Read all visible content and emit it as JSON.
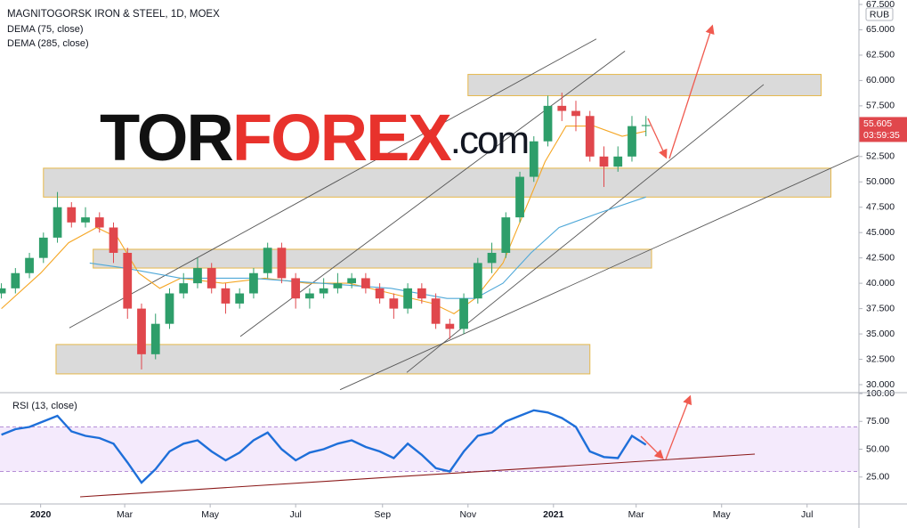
{
  "chart_data": [
    {
      "type": "candlestick",
      "title": "MAGNITOGORSK IRON & STEEL, 1D, MOEX",
      "currency": "RUB",
      "countdown": "03:59:35",
      "watermark": [
        "TOR",
        "FOREX",
        ".com"
      ],
      "up_color": "#2e9e6a",
      "down_color": "#e0474c",
      "xlim": [
        -29,
        584
      ],
      "ylim": [
        30,
        67.5
      ],
      "yticks": [
        {
          "value": 30,
          "label": "30.000"
        },
        {
          "value": 32.5,
          "label": "32.500"
        },
        {
          "value": 35,
          "label": "35.000"
        },
        {
          "value": 37.5,
          "label": "37.500"
        },
        {
          "value": 40,
          "label": "40.000"
        },
        {
          "value": 42.5,
          "label": "42.500"
        },
        {
          "value": 45,
          "label": "45.000"
        },
        {
          "value": 47.5,
          "label": "47.500"
        },
        {
          "value": 50,
          "label": "50.000"
        },
        {
          "value": 52.5,
          "label": "52.500"
        },
        {
          "value": 55,
          "label": "55.000"
        },
        {
          "value": 57.5,
          "label": "57.500"
        },
        {
          "value": 60,
          "label": "60.000"
        },
        {
          "value": 62.5,
          "label": "62.500"
        },
        {
          "value": 65,
          "label": "65.000"
        },
        {
          "value": 67.5,
          "label": "67.500"
        }
      ],
      "x": [
        -28,
        -18,
        -8,
        2,
        12,
        22,
        32,
        42,
        52,
        62,
        72,
        82,
        92,
        102,
        112,
        122,
        132,
        142,
        152,
        162,
        172,
        182,
        192,
        202,
        212,
        222,
        232,
        242,
        252,
        262,
        272,
        282,
        292,
        302,
        312,
        322,
        332,
        342,
        352,
        362,
        372,
        382,
        392,
        402,
        412,
        422,
        432
      ],
      "open": [
        39,
        39.5,
        41,
        42.5,
        44.5,
        47.5,
        46,
        46.5,
        45.5,
        43,
        37.5,
        33,
        36,
        39,
        40,
        41.5,
        39.5,
        38,
        39,
        41,
        43.5,
        40.5,
        38.5,
        39,
        39.5,
        40,
        40.5,
        39.5,
        38.5,
        37.5,
        39.5,
        38.5,
        36,
        35.5,
        38.5,
        42,
        43,
        46.5,
        50.5,
        54,
        57.5,
        57,
        56.5,
        52.5,
        51.5,
        52.5,
        55.5
      ],
      "high": [
        40,
        41.5,
        43,
        45,
        49,
        48,
        47.5,
        47,
        46,
        43.5,
        38,
        37,
        39.5,
        41,
        42.5,
        42,
        40,
        39.5,
        41.5,
        44,
        44,
        41,
        39.5,
        40.5,
        41,
        41,
        41,
        40,
        39,
        40,
        40,
        39,
        36.5,
        39,
        42.5,
        44,
        47,
        51,
        54.5,
        58.5,
        58.8,
        58,
        57,
        53.5,
        53.5,
        56.5,
        56.5
      ],
      "low": [
        38.5,
        39,
        40.5,
        42,
        44,
        45.5,
        45.5,
        45,
        42,
        36.5,
        31.5,
        32.5,
        35.5,
        38.5,
        39.5,
        39,
        37,
        37.5,
        38.5,
        40.5,
        40,
        37.5,
        37.5,
        38.5,
        39,
        39.5,
        39,
        38,
        36.5,
        37,
        38,
        35.5,
        34.5,
        35,
        38,
        41,
        42.5,
        46,
        50,
        53.5,
        56,
        55,
        52,
        49.5,
        51,
        52,
        54.5
      ],
      "close": [
        39.5,
        41,
        42.5,
        44.5,
        47.5,
        46,
        46.5,
        45.5,
        43,
        37.5,
        33,
        36,
        39,
        40,
        41.5,
        39.5,
        38,
        39,
        41,
        43.5,
        40.5,
        38.5,
        39,
        39.5,
        40,
        40.5,
        39.5,
        38.5,
        37.5,
        39.5,
        38.5,
        36,
        35.5,
        38.5,
        42,
        43,
        46.5,
        50.5,
        54,
        57.5,
        57,
        56.5,
        52.5,
        51.5,
        52.5,
        55.5,
        55.605
      ],
      "series": [
        {
          "name": "DEMA (75, close)",
          "color": "#f5a623",
          "x": [
            -28,
            0,
            20,
            40,
            55,
            70,
            85,
            100,
            130,
            160,
            190,
            220,
            250,
            280,
            295,
            310,
            330,
            345,
            360,
            375,
            395,
            415,
            432
          ],
          "values": [
            37.5,
            41,
            44,
            45.5,
            44.5,
            41,
            39.5,
            40.5,
            40,
            40.5,
            40,
            40,
            39,
            38,
            37,
            38.5,
            42,
            47,
            52,
            55.5,
            55.5,
            54.5,
            55
          ]
        },
        {
          "name": "DEMA (285, close)",
          "color": "#4fa8d8",
          "x": [
            35,
            60,
            100,
            150,
            200,
            250,
            290,
            310,
            330,
            350,
            370,
            400,
            432
          ],
          "values": [
            42,
            41.5,
            40.5,
            40.5,
            40,
            39.5,
            38.5,
            38.5,
            40,
            43,
            45.5,
            47,
            48.5
          ]
        }
      ],
      "zones": [
        {
          "x": [
            305,
            557
          ],
          "y": [
            58.5,
            60.6
          ]
        },
        {
          "x": [
            2,
            564
          ],
          "y": [
            48.5,
            51.35
          ]
        },
        {
          "x": [
            37.5,
            436
          ],
          "y": [
            41.5,
            43.35
          ]
        },
        {
          "x": [
            11,
            392
          ],
          "y": [
            31.06,
            33.96
          ]
        }
      ],
      "trendlines": [
        {
          "x": [
            20.5,
            396.6
          ],
          "y": [
            35.6,
            64.1
          ]
        },
        {
          "x": [
            142.5,
            417
          ],
          "y": [
            34.75,
            62.9
          ]
        },
        {
          "x": [
            261.3,
            516
          ],
          "y": [
            31.2,
            59.6
          ]
        },
        {
          "x": [
            213.7,
            584
          ],
          "y": [
            29.5,
            52.6
          ]
        }
      ]
    },
    {
      "type": "line",
      "title": "RSI (13, close)",
      "color": "#1e6fd9",
      "band": [
        30,
        70
      ],
      "xlim": [
        -29,
        584
      ],
      "ylim": [
        0,
        100
      ],
      "yticks": [
        {
          "value": 25,
          "label": "25.00"
        },
        {
          "value": 50,
          "label": "50.00"
        },
        {
          "value": 75,
          "label": "75.00"
        },
        {
          "value": 100,
          "label": "100.00"
        }
      ],
      "xticks": [
        {
          "value": 0,
          "label": "2020"
        },
        {
          "value": 60,
          "label": "Mar"
        },
        {
          "value": 121,
          "label": "May"
        },
        {
          "value": 182,
          "label": "Jul"
        },
        {
          "value": 244,
          "label": "Sep"
        },
        {
          "value": 305,
          "label": "Nov"
        },
        {
          "value": 366,
          "label": "2021"
        },
        {
          "value": 425,
          "label": "Mar"
        },
        {
          "value": 486,
          "label": "May"
        },
        {
          "value": 547,
          "label": "Jul"
        }
      ],
      "x": [
        -28,
        -18,
        -8,
        2,
        12,
        22,
        32,
        42,
        52,
        62,
        72,
        82,
        92,
        102,
        112,
        122,
        132,
        142,
        152,
        162,
        172,
        182,
        192,
        202,
        212,
        222,
        232,
        242,
        252,
        262,
        272,
        282,
        292,
        302,
        312,
        322,
        332,
        342,
        352,
        362,
        372,
        382,
        392,
        402,
        412,
        422,
        432
      ],
      "values": [
        63,
        68,
        70,
        75,
        80,
        66,
        62,
        60,
        55,
        38,
        20,
        32,
        48,
        55,
        58,
        48,
        40,
        47,
        58,
        65,
        50,
        40,
        47,
        50,
        55,
        58,
        52,
        48,
        42,
        55,
        45,
        33,
        30,
        48,
        62,
        65,
        75,
        80,
        85,
        83,
        78,
        70,
        48,
        43,
        42,
        62,
        54
      ],
      "trendline": {
        "x": [
          28.2,
          509.7
        ],
        "y": [
          7.2,
          45.6
        ]
      }
    }
  ]
}
